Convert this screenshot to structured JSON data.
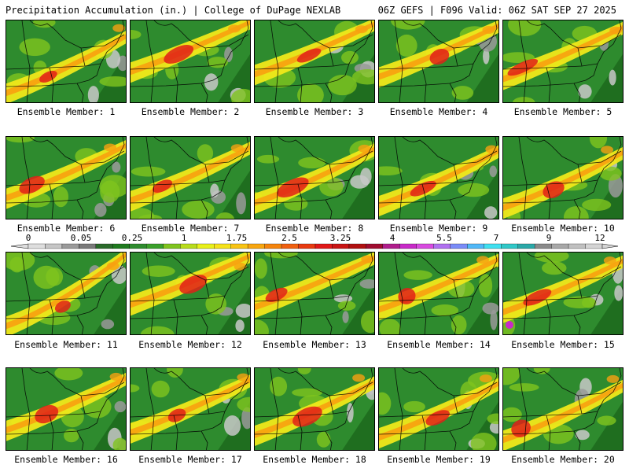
{
  "header": {
    "title_left": "Precipitation Accumulation (in.) | College of DuPage NEXLAB",
    "title_right": "06Z GEFS | F096 Valid: 06Z SAT SEP 27 2025"
  },
  "colorbar": {
    "labels": [
      "0",
      "0.05",
      "0.25",
      "1",
      "1.75",
      "2.5",
      "3.25",
      "4",
      "5.5",
      "7",
      "9",
      "12"
    ],
    "colors": [
      "#dedede",
      "#c6c6c6",
      "#9a9a9a",
      "#7a7a7a",
      "#2a6a2a",
      "#1f7a1f",
      "#2e8b2e",
      "#3aa02a",
      "#7fc41e",
      "#b8dc1c",
      "#e8f01a",
      "#f5e21a",
      "#f8c414",
      "#f8a60f",
      "#f5840c",
      "#f06010",
      "#e83a10",
      "#e01818",
      "#c81414",
      "#b01010",
      "#a00c30",
      "#b01e8c",
      "#c82ac8",
      "#d84ae0",
      "#b070f0",
      "#7a8cf8",
      "#50b8f8",
      "#40e0f0",
      "#30c8c8",
      "#2aa8a8",
      "#8a8a8a",
      "#a8a8a8",
      "#c0c0c0",
      "#d4d4d4"
    ]
  },
  "members": [
    {
      "label": "Ensemble Member: 1"
    },
    {
      "label": "Ensemble Member: 2"
    },
    {
      "label": "Ensemble Member: 3"
    },
    {
      "label": "Ensemble Member: 4"
    },
    {
      "label": "Ensemble Member: 5"
    },
    {
      "label": "Ensemble Member: 6"
    },
    {
      "label": "Ensemble Member: 7"
    },
    {
      "label": "Ensemble Member: 8"
    },
    {
      "label": "Ensemble Member: 9"
    },
    {
      "label": "Ensemble Member: 10"
    },
    {
      "label": "Ensemble Member: 11"
    },
    {
      "label": "Ensemble Member: 12"
    },
    {
      "label": "Ensemble Member: 13"
    },
    {
      "label": "Ensemble Member: 14"
    },
    {
      "label": "Ensemble Member: 15"
    },
    {
      "label": "Ensemble Member: 16"
    },
    {
      "label": "Ensemble Member: 17"
    },
    {
      "label": "Ensemble Member: 18"
    },
    {
      "label": "Ensemble Member: 19"
    },
    {
      "label": "Ensemble Member: 20"
    }
  ],
  "map_colors": {
    "green": "#2e8b2e",
    "dark_green": "#1f6e1f",
    "light_green": "#7fc41e",
    "yellow": "#f0e81a",
    "orange": "#f8a010",
    "red": "#e02018",
    "dark_red": "#b01010",
    "gray": "#9a9a9a",
    "light_gray": "#c8c8c8",
    "purple": "#c82ac8"
  }
}
